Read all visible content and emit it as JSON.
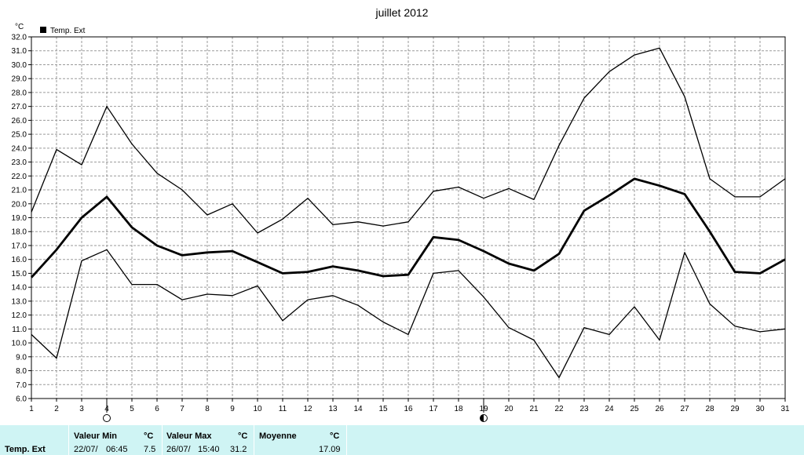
{
  "chart_data": {
    "type": "line",
    "title": "juillet 2012",
    "ylabel": "°C",
    "legend": {
      "label": "Temp. Ext",
      "placement": "top-left"
    },
    "grid": true,
    "x": [
      1,
      2,
      3,
      4,
      5,
      6,
      7,
      8,
      9,
      10,
      11,
      12,
      13,
      14,
      15,
      16,
      17,
      18,
      19,
      20,
      21,
      22,
      23,
      24,
      25,
      26,
      27,
      28,
      29,
      30,
      31
    ],
    "ylim": [
      6.0,
      32.0
    ],
    "yticks": [
      "6.0",
      "7.0",
      "8.0",
      "9.0",
      "10.0",
      "11.0",
      "12.0",
      "13.0",
      "14.0",
      "15.0",
      "16.0",
      "17.0",
      "18.0",
      "19.0",
      "20.0",
      "21.0",
      "22.0",
      "23.0",
      "24.0",
      "25.0",
      "26.0",
      "27.0",
      "28.0",
      "29.0",
      "30.0",
      "31.0",
      "32.0"
    ],
    "series": [
      {
        "role": "max",
        "width": 1.3,
        "values": [
          19.4,
          23.9,
          22.8,
          27.0,
          24.3,
          22.2,
          21.0,
          19.2,
          20.0,
          17.9,
          18.9,
          20.4,
          18.5,
          18.7,
          18.4,
          18.7,
          20.9,
          21.2,
          20.4,
          21.1,
          20.3,
          24.2,
          27.6,
          29.5,
          30.7,
          31.2,
          27.7,
          21.8,
          20.5,
          20.5,
          21.8
        ]
      },
      {
        "role": "mean",
        "width": 2.8,
        "values": [
          14.7,
          16.7,
          19.0,
          20.5,
          18.3,
          17.0,
          16.3,
          16.5,
          16.6,
          15.8,
          15.0,
          15.1,
          15.5,
          15.2,
          14.8,
          14.9,
          17.6,
          17.4,
          16.6,
          15.7,
          15.2,
          16.4,
          19.5,
          20.6,
          21.8,
          21.3,
          20.7,
          18.0,
          15.1,
          15.0,
          16.0
        ]
      },
      {
        "role": "min",
        "width": 1.3,
        "values": [
          10.6,
          8.9,
          15.9,
          16.7,
          14.2,
          14.2,
          13.1,
          13.5,
          13.4,
          14.1,
          11.6,
          13.1,
          13.4,
          12.7,
          11.5,
          10.6,
          15.0,
          15.2,
          13.3,
          11.1,
          10.2,
          7.5,
          11.1,
          10.6,
          12.6,
          10.2,
          16.5,
          12.8,
          11.2,
          10.8,
          11.0
        ]
      }
    ],
    "moon_markers": [
      {
        "day": 4,
        "phase": "full-moon-icon"
      },
      {
        "day": 19,
        "phase": "new-moon-icon"
      }
    ]
  },
  "stats": {
    "row_label": "Temp. Ext",
    "min_header": "Valeur Min",
    "unit1": "°C",
    "min_date": "22/07/",
    "min_time": "06:45",
    "min_value": "7.5",
    "max_header": "Valeur Max",
    "unit2": "°C",
    "max_date": "26/07/",
    "max_time": "15:40",
    "max_value": "31.2",
    "avg_header": "Moyenne",
    "unit3": "°C",
    "avg_value": "17.09"
  }
}
